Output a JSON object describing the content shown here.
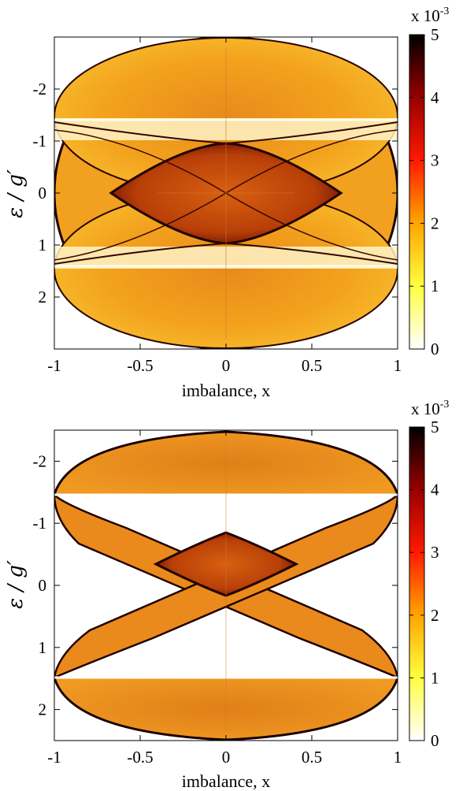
{
  "chart_data": [
    {
      "type": "heatmap",
      "panel": "top",
      "xlabel": "imbalance, x",
      "ylabel": "ε / g′",
      "xlim": [
        -1,
        1
      ],
      "ylim": [
        -3,
        3
      ],
      "y_axis_inverted": true,
      "x_ticks": [
        -1,
        -0.5,
        0,
        0.5,
        1
      ],
      "x_tick_labels": [
        "-1",
        "-0.5",
        "0",
        "0.5",
        "1"
      ],
      "y_ticks": [
        -2,
        -1,
        0,
        1,
        2
      ],
      "y_tick_labels": [
        "-2",
        "-1",
        "0",
        "1",
        "2"
      ],
      "colorbar": {
        "range": [
          0,
          5
        ],
        "ticks": [
          0,
          1,
          2,
          3,
          4,
          5
        ],
        "tick_labels": [
          "0",
          "1",
          "2",
          "3",
          "4",
          "5"
        ],
        "multiplier_text": "x 10",
        "multiplier_exp": "-3",
        "colormap": [
          "#ffffff",
          "#ffff40",
          "#ffa500",
          "#ff1a00",
          "#990000",
          "#000000"
        ]
      },
      "bands": {
        "outer_ellipse_halfheight": 2.95,
        "upper_lobe_center": -1.5,
        "lower_lobe_center": 1.5,
        "lobe_halfheight": 1.5,
        "white_gap_bands": [
          [
            -1.45,
            -1.05
          ],
          [
            1.05,
            1.45
          ]
        ],
        "crossing_points_y": [
          -0.93,
          0.93
        ],
        "crossing_points_x": [
          -0.67,
          0.67
        ]
      }
    },
    {
      "type": "heatmap",
      "panel": "bottom",
      "xlabel": "imbalance, x",
      "ylabel": "ε / g′",
      "xlim": [
        -1,
        1
      ],
      "ylim": [
        -2.5,
        2.5
      ],
      "y_axis_inverted": true,
      "x_ticks": [
        -1,
        -0.5,
        0,
        0.5,
        1
      ],
      "x_tick_labels": [
        "-1",
        "-0.5",
        "0",
        "0.5",
        "1"
      ],
      "y_ticks": [
        -2,
        -1,
        0,
        1,
        2
      ],
      "y_tick_labels": [
        "-2",
        "-1",
        "0",
        "1",
        "2"
      ],
      "colorbar": {
        "range": [
          0,
          5
        ],
        "ticks": [
          0,
          1,
          2,
          3,
          4,
          5
        ],
        "tick_labels": [
          "0",
          "1",
          "2",
          "3",
          "4",
          "5"
        ],
        "multiplier_text": "x 10",
        "multiplier_exp": "-3",
        "colormap": [
          "#ffffff",
          "#ffff40",
          "#ffa500",
          "#ff1a00",
          "#990000",
          "#000000"
        ]
      },
      "bands": {
        "outer_ellipse_halfheight": 2.45,
        "cap_edges_y": [
          -1.45,
          1.45
        ],
        "x_cross_y": [
          -1.45,
          1.45
        ],
        "crossing_points_y": [
          -0.5,
          0.5
        ],
        "crossing_points_x": [
          -0.4,
          0.4
        ]
      }
    }
  ]
}
